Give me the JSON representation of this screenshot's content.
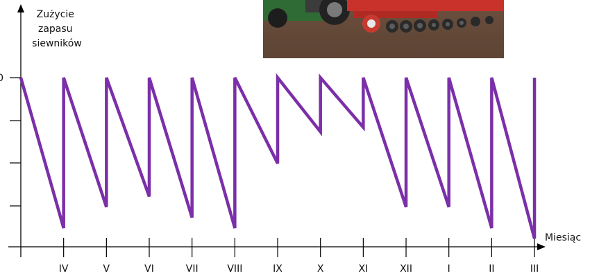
{
  "chart_data": {
    "type": "line",
    "ylabel_lines": [
      "Zużycie",
      "zapasu",
      "siewników"
    ],
    "xlabel": "Miesiąc",
    "y_tick_label": "0",
    "ylim": [
      0,
      1
    ],
    "x_categories": [
      "IV",
      "V",
      "VI",
      "VII",
      "VIII",
      "IX",
      "X",
      "XI",
      "XII",
      "I",
      "II",
      "III"
    ],
    "series": [
      {
        "color": "#7b2fa8",
        "points": [
          [
            0,
            1.0
          ],
          [
            1,
            0.0
          ],
          [
            1,
            1.0
          ],
          [
            2,
            0.14
          ],
          [
            2,
            1.0
          ],
          [
            3,
            0.21
          ],
          [
            3,
            1.0
          ],
          [
            4,
            0.07
          ],
          [
            4,
            1.0
          ],
          [
            5,
            0.0
          ],
          [
            5,
            1.0
          ],
          [
            6,
            0.43
          ],
          [
            6,
            1.0
          ],
          [
            7,
            0.64
          ],
          [
            7,
            1.0
          ],
          [
            8,
            0.67
          ],
          [
            8,
            1.0
          ],
          [
            9,
            0.14
          ],
          [
            9,
            1.0
          ],
          [
            10,
            0.14
          ],
          [
            10,
            1.0
          ],
          [
            11,
            0.0
          ],
          [
            11,
            1.0
          ],
          [
            12,
            -0.07
          ],
          [
            12,
            1.0
          ]
        ]
      }
    ],
    "photo": {
      "description": "agricultural-seeder-photo"
    }
  }
}
